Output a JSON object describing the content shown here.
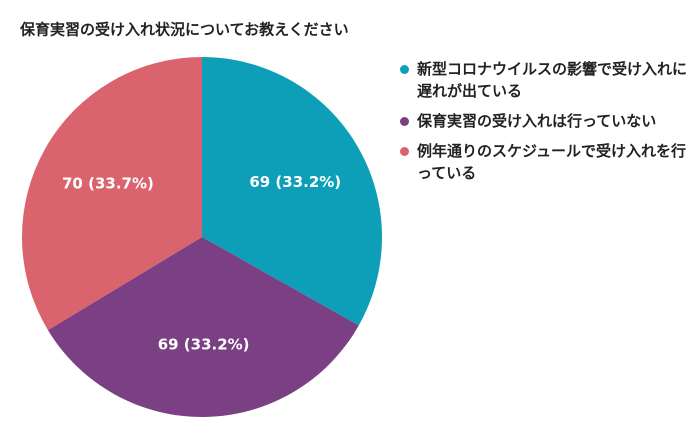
{
  "chart_data": {
    "type": "pie",
    "title": "保育実習の受け入れ状況についてお教えください",
    "categories": [
      "新型コロナウイルスの影響で受け入れに遅れが出ている",
      "保育実習の受け入れは行っていない",
      "例年通りのスケジュールで受け入れを行っている"
    ],
    "values": [
      69,
      69,
      70
    ],
    "value_labels": [
      "69 (33.2%)",
      "69 (33.2%)",
      "70 (33.7%)"
    ],
    "colors": [
      "#0e9fb8",
      "#7b3f84",
      "#d9646e"
    ],
    "legend": "right"
  }
}
